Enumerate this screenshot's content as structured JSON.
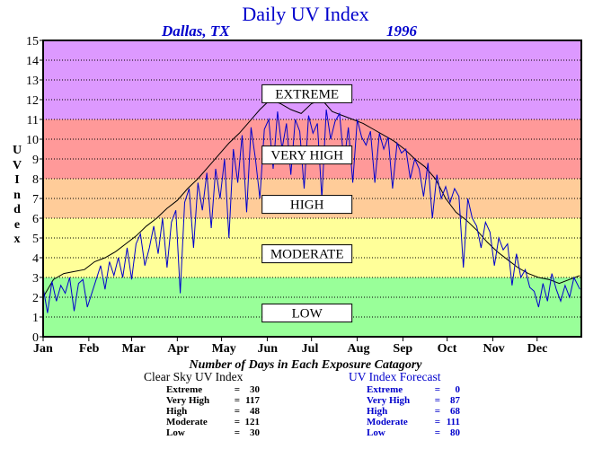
{
  "title": "Daily UV Index",
  "location": "Dallas, TX",
  "year": "1996",
  "y_axis_letters": [
    "U",
    "V",
    " ",
    "I",
    "n",
    "d",
    "e",
    "x"
  ],
  "counts_title": "Number of Days in Each Exposure Catagory",
  "clear_sky": {
    "title": "Clear Sky UV Index",
    "rows": [
      {
        "label": "Extreme",
        "eq": "=",
        "value": "30"
      },
      {
        "label": "Very High",
        "eq": "=",
        "value": "117"
      },
      {
        "label": "High",
        "eq": "=",
        "value": "48"
      },
      {
        "label": "Moderate",
        "eq": "=",
        "value": "121"
      },
      {
        "label": "Low",
        "eq": "=",
        "value": "30"
      }
    ]
  },
  "forecast": {
    "title": "UV Index Forecast",
    "rows": [
      {
        "label": "Extreme",
        "eq": "=",
        "value": "0"
      },
      {
        "label": "Very High",
        "eq": "=",
        "value": "87"
      },
      {
        "label": "High",
        "eq": "=",
        "value": "68"
      },
      {
        "label": "Moderate",
        "eq": "=",
        "value": "111"
      },
      {
        "label": "Low",
        "eq": "=",
        "value": "80"
      }
    ]
  },
  "colors": {
    "extreme": "#dd99ff",
    "very_high": "#ff9999",
    "high": "#ffcc99",
    "moderate": "#ffff99",
    "low": "#99ff99",
    "clear_sky_line": "#000000",
    "forecast_line": "#0000cc",
    "title": "#0000cc"
  },
  "chart_data": {
    "type": "line",
    "ylim": [
      0,
      15
    ],
    "yticks": [
      0,
      1,
      2,
      3,
      4,
      5,
      6,
      7,
      8,
      9,
      10,
      11,
      12,
      13,
      14,
      15
    ],
    "xlim": [
      1,
      366
    ],
    "month_labels": [
      "Jan",
      "Feb",
      "Mar",
      "Apr",
      "May",
      "Jun",
      "Jul",
      "Aug",
      "Sep",
      "Oct",
      "Nov",
      "Dec"
    ],
    "month_start_days": [
      1,
      32,
      61,
      92,
      122,
      153,
      183,
      214,
      245,
      275,
      306,
      336
    ],
    "grid": true,
    "bands": [
      {
        "name": "EXTREME",
        "from": 11,
        "to": 15,
        "label_at": 12.3,
        "color": "#dd99ff"
      },
      {
        "name": "VERY HIGH",
        "from": 8,
        "to": 11,
        "label_at": 9.2,
        "color": "#ff9999"
      },
      {
        "name": "HIGH",
        "from": 6,
        "to": 8,
        "label_at": 6.7,
        "color": "#ffcc99"
      },
      {
        "name": "MODERATE",
        "from": 3,
        "to": 6,
        "label_at": 4.2,
        "color": "#ffff99"
      },
      {
        "name": "LOW",
        "from": 0,
        "to": 3,
        "label_at": 1.2,
        "color": "#99ff99"
      }
    ],
    "series": [
      {
        "name": "Clear Sky UV Index",
        "color": "#000000",
        "x": [
          1,
          8,
          15,
          22,
          29,
          36,
          43,
          50,
          57,
          64,
          71,
          78,
          85,
          92,
          99,
          106,
          113,
          120,
          127,
          134,
          141,
          148,
          155,
          162,
          169,
          176,
          183,
          190,
          197,
          204,
          211,
          218,
          225,
          232,
          239,
          246,
          253,
          260,
          267,
          274,
          281,
          288,
          295,
          302,
          309,
          316,
          323,
          330,
          337,
          344,
          351,
          358,
          365
        ],
        "values": [
          2.0,
          2.9,
          3.2,
          3.3,
          3.4,
          3.8,
          4.0,
          4.3,
          4.7,
          5.1,
          5.6,
          6.0,
          6.5,
          6.9,
          7.5,
          8.0,
          8.6,
          9.2,
          9.8,
          10.3,
          10.9,
          11.5,
          12.0,
          11.8,
          11.5,
          11.3,
          11.8,
          12.0,
          11.4,
          11.2,
          11.0,
          10.8,
          10.5,
          10.2,
          9.9,
          9.5,
          9.0,
          8.6,
          8.0,
          7.0,
          6.3,
          5.9,
          5.4,
          4.8,
          4.3,
          3.9,
          3.5,
          3.2,
          3.0,
          2.9,
          2.7,
          2.9,
          3.1
        ]
      },
      {
        "name": "UV Index Forecast",
        "color": "#0000cc",
        "x": [
          1,
          4,
          7,
          10,
          13,
          16,
          19,
          22,
          25,
          28,
          31,
          40,
          43,
          46,
          49,
          52,
          55,
          58,
          61,
          64,
          67,
          70,
          73,
          76,
          79,
          82,
          85,
          88,
          91,
          94,
          97,
          100,
          103,
          106,
          109,
          112,
          115,
          118,
          121,
          124,
          127,
          130,
          133,
          136,
          139,
          142,
          145,
          148,
          151,
          154,
          157,
          160,
          163,
          166,
          169,
          172,
          175,
          178,
          181,
          184,
          187,
          190,
          193,
          196,
          199,
          202,
          205,
          208,
          211,
          214,
          217,
          220,
          223,
          226,
          229,
          232,
          235,
          238,
          241,
          244,
          247,
          250,
          253,
          256,
          259,
          262,
          265,
          268,
          271,
          274,
          277,
          280,
          283,
          286,
          289,
          292,
          295,
          298,
          301,
          304,
          307,
          310,
          313,
          316,
          319,
          322,
          325,
          328,
          331,
          334,
          337,
          340,
          343,
          346,
          349,
          352,
          355,
          358,
          361,
          365
        ],
        "values": [
          2.5,
          1.2,
          2.8,
          1.8,
          2.6,
          2.2,
          3.0,
          1.3,
          2.7,
          2.9,
          1.5,
          3.6,
          2.4,
          3.8,
          3.1,
          4.0,
          3.0,
          4.5,
          2.9,
          4.7,
          5.2,
          3.6,
          4.5,
          5.6,
          4.2,
          6.0,
          3.5,
          5.8,
          6.4,
          2.2,
          6.8,
          7.5,
          4.5,
          7.8,
          6.4,
          8.3,
          5.5,
          8.5,
          7.0,
          9.0,
          5.0,
          9.5,
          7.8,
          10.2,
          6.3,
          10.6,
          9.0,
          7.0,
          10.5,
          11.0,
          8.5,
          11.4,
          9.5,
          10.8,
          8.2,
          11.0,
          10.4,
          7.5,
          11.2,
          10.3,
          10.8,
          7.0,
          11.5,
          10.0,
          10.9,
          11.3,
          8.8,
          10.6,
          7.8,
          11.0,
          10.1,
          9.7,
          10.4,
          7.8,
          10.3,
          9.5,
          10.1,
          7.5,
          9.8,
          9.3,
          9.5,
          8.0,
          9.0,
          8.5,
          7.1,
          8.8,
          6.0,
          8.2,
          7.0,
          7.6,
          6.8,
          7.5,
          7.1,
          3.5,
          7.0,
          6.0,
          5.6,
          4.5,
          5.8,
          5.3,
          3.6,
          5.0,
          4.4,
          4.7,
          2.6,
          4.2,
          3.0,
          3.4,
          2.5,
          2.3,
          1.5,
          2.7,
          1.8,
          3.2,
          2.4,
          1.8,
          2.6,
          2.0,
          3.0,
          2.4
        ]
      }
    ]
  }
}
